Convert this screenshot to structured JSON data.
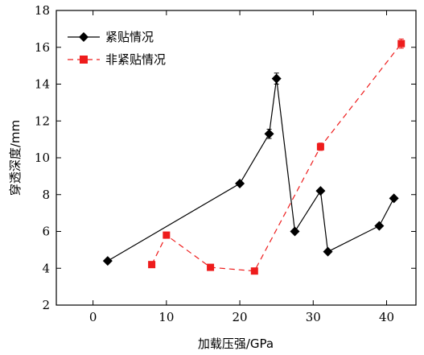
{
  "chart_data": {
    "type": "line",
    "xlabel": "加载压强/GPa",
    "ylabel": "穿透深度/mm",
    "xlim": [
      -5,
      44
    ],
    "ylim": [
      2,
      18
    ],
    "xticks": [
      0,
      10,
      20,
      30,
      40
    ],
    "yticks": [
      2,
      4,
      6,
      8,
      10,
      12,
      14,
      16,
      18
    ],
    "grid": false,
    "legend_position": "top-left",
    "series": [
      {
        "name": "紧贴情况",
        "color": "#000000",
        "marker": "diamond",
        "line_style": "solid",
        "x": [
          2,
          20,
          24,
          25,
          27.5,
          31,
          32,
          39,
          41
        ],
        "y": [
          4.4,
          8.6,
          11.3,
          14.3,
          6.0,
          8.2,
          4.9,
          6.3,
          7.8
        ],
        "error": [
          0,
          0,
          0.25,
          0.3,
          0,
          0.1,
          0,
          0,
          0
        ]
      },
      {
        "name": "非紧贴情况",
        "color": "#ee1c1c",
        "marker": "square",
        "line_style": "dashed",
        "x": [
          8,
          10,
          16,
          22,
          31,
          42
        ],
        "y": [
          4.2,
          5.8,
          4.05,
          3.85,
          10.6,
          16.2
        ],
        "error": [
          0,
          0,
          0,
          0,
          0.2,
          0.25
        ]
      }
    ]
  }
}
